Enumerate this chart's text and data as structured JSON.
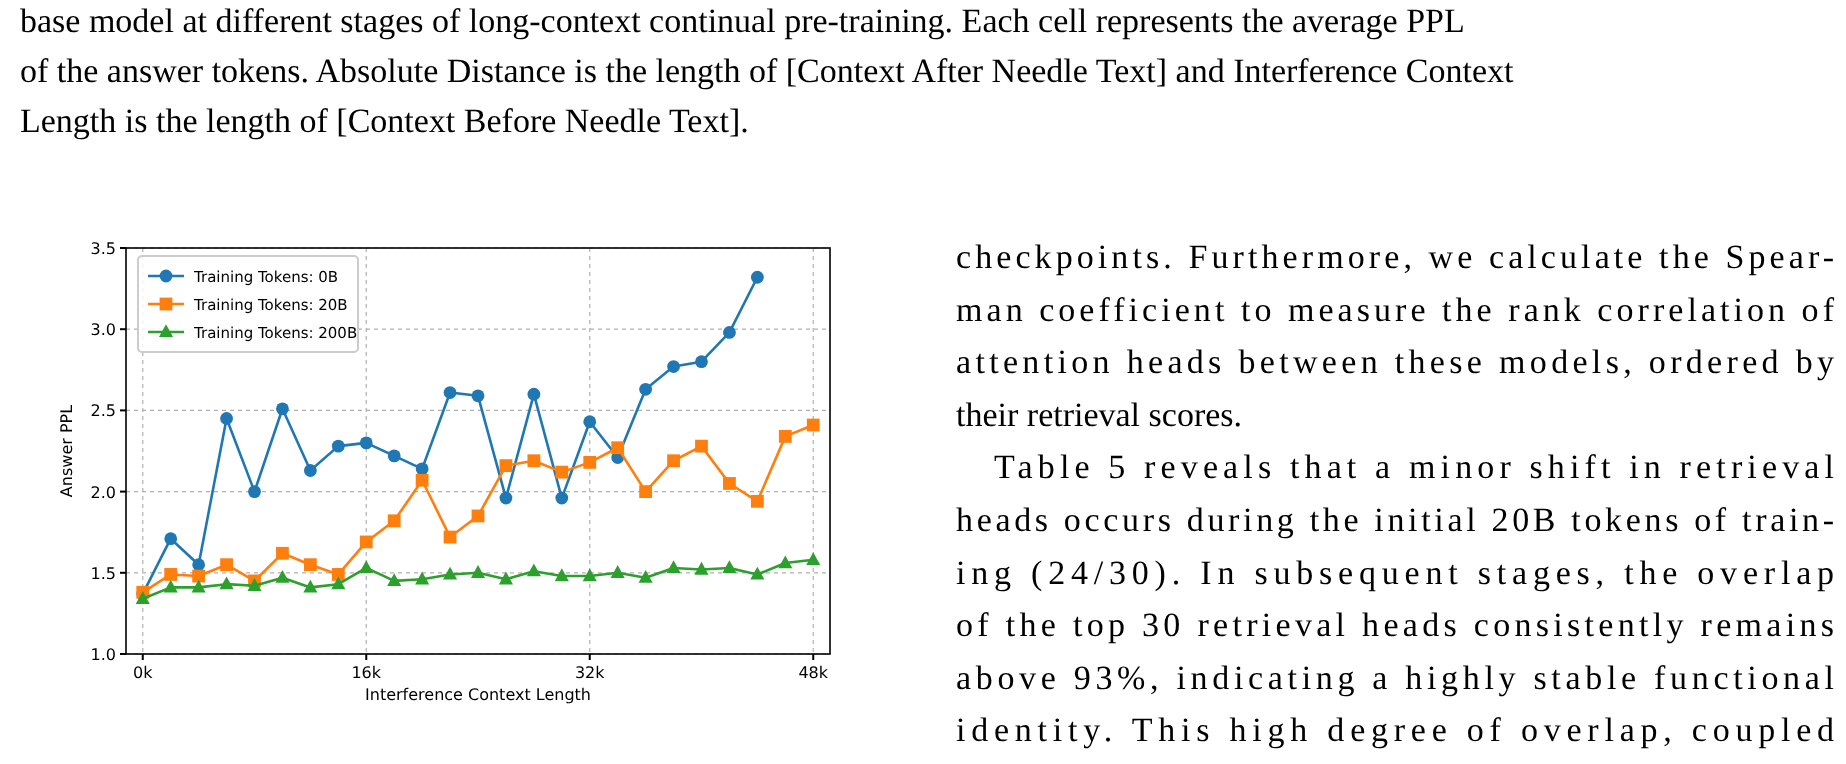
{
  "chart_data": {
    "type": "line",
    "xlabel": "Interference Context Length",
    "ylabel": "Answer PPL",
    "x": [
      0,
      2000,
      4000,
      6000,
      8000,
      10000,
      12000,
      14000,
      16000,
      18000,
      20000,
      22000,
      24000,
      26000,
      28000,
      30000,
      32000,
      34000,
      36000,
      38000,
      40000,
      42000,
      44000,
      46000,
      48000
    ],
    "series": [
      {
        "name": "Training Tokens: 0B",
        "color": "#1f77b4",
        "marker": "circle",
        "values": [
          1.37,
          1.71,
          1.55,
          2.45,
          2.0,
          2.51,
          2.13,
          2.28,
          2.3,
          2.22,
          2.14,
          2.61,
          2.59,
          1.96,
          2.6,
          1.96,
          2.43,
          2.21,
          2.63,
          2.77,
          2.8,
          2.98,
          3.32,
          null,
          null
        ]
      },
      {
        "name": "Training Tokens: 20B",
        "color": "#ff7f0e",
        "marker": "square",
        "values": [
          1.38,
          1.49,
          1.48,
          1.55,
          1.45,
          1.62,
          1.55,
          1.49,
          1.69,
          1.82,
          2.07,
          1.72,
          1.85,
          2.16,
          2.19,
          2.12,
          2.18,
          2.27,
          2.0,
          2.19,
          2.28,
          2.05,
          1.94,
          2.34,
          2.41
        ]
      },
      {
        "name": "Training Tokens: 200B",
        "color": "#2ca02c",
        "marker": "triangle",
        "values": [
          1.34,
          1.41,
          1.41,
          1.43,
          1.42,
          1.47,
          1.41,
          1.43,
          1.53,
          1.45,
          1.46,
          1.49,
          1.5,
          1.46,
          1.51,
          1.48,
          1.48,
          1.5,
          1.47,
          1.53,
          1.52,
          1.53,
          1.49,
          1.56,
          1.58
        ]
      }
    ],
    "xlim": [
      -1200,
      49200
    ],
    "xticks": [
      {
        "value": 0,
        "label": "0k"
      },
      {
        "value": 16000,
        "label": "16k"
      },
      {
        "value": 32000,
        "label": "32k"
      },
      {
        "value": 48000,
        "label": "48k"
      }
    ],
    "ylim": [
      1,
      3.5
    ],
    "yticks": [
      {
        "value": 1,
        "label": "1.0"
      },
      {
        "value": 1.5,
        "label": "1.5"
      },
      {
        "value": 2,
        "label": "2.0"
      },
      {
        "value": 2.5,
        "label": "2.5"
      },
      {
        "value": 3,
        "label": "3.0"
      },
      {
        "value": 3.5,
        "label": "3.5"
      }
    ],
    "grid": true,
    "legend": "top left",
    "line_style": "solid",
    "annotations": [
      "base model at different stages of long-context continual pre-training. Each cell represents the average PPL",
      "of the answer tokens. Absolute Distance is the length of [Context After Needle Text] and Interference Context",
      "Length is the length of [Context Before Needle Text].",
      "checkpoints. Furthermore, we calculate the Spear-",
      "man coefficient to measure the rank correlation of",
      "attention heads between these models, ordered by",
      "their retrieval scores.",
      "Table 5 reveals that a minor shift in retrieval",
      "heads occurs during the initial 20B tokens of train-",
      "ing (24/30). In subsequent stages, the overlap",
      "of the top 30 retrieval heads consistently remains",
      "above 93%, indicating a highly stable functional",
      "identity. This high degree of overlap, coupled"
    ]
  }
}
